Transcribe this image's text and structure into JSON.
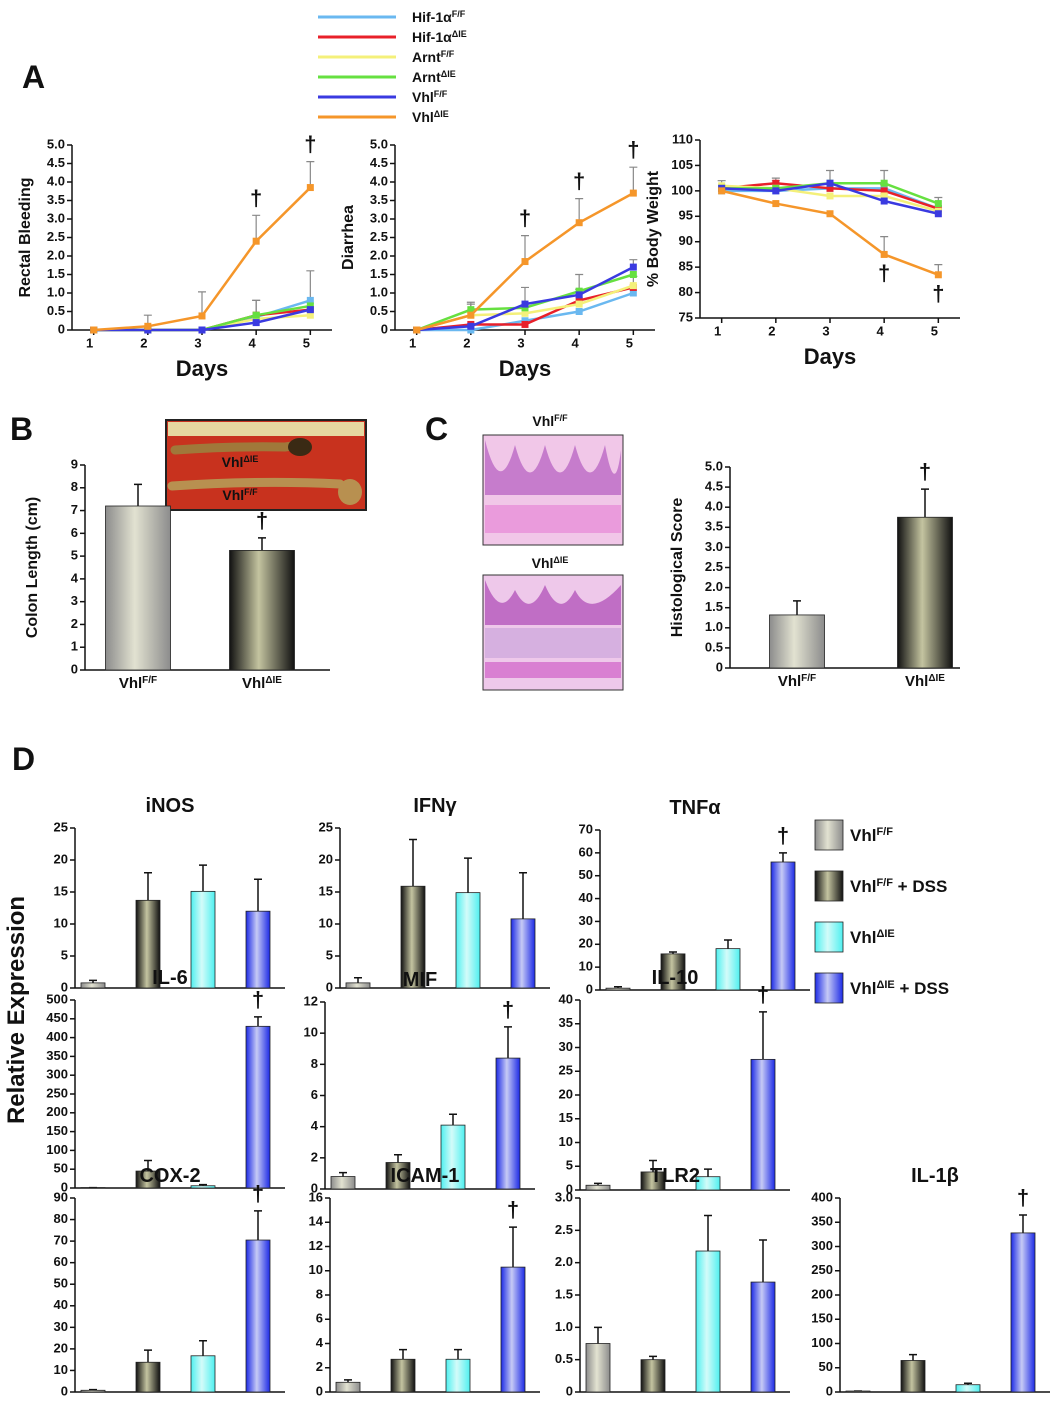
{
  "panel_labels": [
    "A",
    "B",
    "C",
    "D"
  ],
  "legend_A": [
    {
      "name": "Hif-1α",
      "sup": "F/F",
      "color": "#6ab8f0"
    },
    {
      "name": "Hif-1α",
      "sup": "ΔIE",
      "color": "#e8202a"
    },
    {
      "name": "Arnt",
      "sup": "F/F",
      "color": "#f4f07a"
    },
    {
      "name": "Arnt",
      "sup": "ΔIE",
      "color": "#66e040"
    },
    {
      "name": "Vhl",
      "sup": "F/F",
      "color": "#3a3ae0"
    },
    {
      "name": "Vhl",
      "sup": "ΔIE",
      "color": "#f5962a"
    }
  ],
  "legend_D": [
    {
      "name": "Vhl",
      "sup": "F/F",
      "color": "#8c8c8c"
    },
    {
      "name": "Vhl",
      "sup": "F/F",
      "suffix": " + DSS",
      "color": "#111111"
    },
    {
      "name": "Vhl",
      "sup": "ΔIE",
      "color": "#4ef0f0"
    },
    {
      "name": "Vhl",
      "sup": "ΔIE",
      "suffix": " + DSS",
      "color": "#1c2ae6"
    }
  ],
  "shared_y_label": "Relative Expression",
  "chart_data": [
    {
      "type": "line",
      "y_label": "Rectal Bleeding",
      "x_label": "Days",
      "x": [
        1,
        2,
        3,
        4,
        5
      ],
      "xlim": [
        0.6,
        5.4
      ],
      "xticks": [
        1,
        2,
        3,
        4,
        5
      ],
      "ylim": [
        0,
        5
      ],
      "yticks": [
        0,
        0.5,
        {
          "value": 1,
          "label": "1.0"
        },
        1.5,
        {
          "value": 2,
          "label": "2.0"
        },
        2.5,
        {
          "value": 3,
          "label": "3.0"
        },
        3.5,
        {
          "value": 4,
          "label": "4.0"
        },
        4.5,
        {
          "value": 5,
          "label": "5.0"
        }
      ],
      "series": [
        {
          "values": [
            0,
            0,
            0,
            0.35,
            0.8
          ],
          "errors": [
            null,
            null,
            null,
            0.45,
            0.8
          ]
        },
        {
          "values": [
            0,
            0,
            0,
            0.4,
            0.55
          ],
          "errors": [
            null,
            null,
            null,
            0.4,
            null
          ]
        },
        {
          "values": [
            0,
            0,
            0,
            0.3,
            0.4
          ],
          "errors": [
            null,
            null,
            null,
            null,
            null
          ]
        },
        {
          "values": [
            0,
            0,
            0,
            0.4,
            0.65
          ],
          "errors": [
            null,
            null,
            null,
            null,
            null
          ]
        },
        {
          "values": [
            0,
            0,
            0,
            0.2,
            0.55
          ],
          "errors": [
            null,
            null,
            null,
            null,
            null
          ]
        },
        {
          "values": [
            0,
            0.1,
            0.38,
            2.4,
            3.85
          ],
          "errors": [
            null,
            0.3,
            0.65,
            0.7,
            0.7
          ]
        }
      ],
      "annotations": [
        {
          "text": "†",
          "series": 5,
          "index": 3,
          "side": "above"
        },
        {
          "text": "†",
          "series": 5,
          "index": 4,
          "side": "above"
        }
      ]
    },
    {
      "type": "line",
      "y_label": "Diarrhea",
      "x_label": "Days",
      "x": [
        1,
        2,
        3,
        4,
        5
      ],
      "xlim": [
        0.6,
        5.4
      ],
      "xticks": [
        1,
        2,
        3,
        4,
        5
      ],
      "ylim": [
        0,
        5
      ],
      "yticks": [
        0,
        0.5,
        {
          "value": 1,
          "label": "1.0"
        },
        1.5,
        {
          "value": 2,
          "label": "2.0"
        },
        2.5,
        {
          "value": 3,
          "label": "3.0"
        },
        3.5,
        {
          "value": 4,
          "label": "4.0"
        },
        4.5,
        {
          "value": 5,
          "label": "5.0"
        }
      ],
      "series": [
        {
          "values": [
            0,
            0,
            0.25,
            0.5,
            1.0
          ],
          "errors": [
            null,
            null,
            null,
            null,
            null
          ]
        },
        {
          "values": [
            0,
            0.15,
            0.15,
            0.8,
            1.15
          ],
          "errors": [
            null,
            null,
            null,
            0.3,
            0.3
          ]
        },
        {
          "values": [
            0,
            0.4,
            0.45,
            0.7,
            1.2
          ],
          "errors": [
            null,
            null,
            null,
            null,
            null
          ]
        },
        {
          "values": [
            0,
            0.55,
            0.6,
            1.05,
            1.5
          ],
          "errors": [
            null,
            0.2,
            null,
            0.45,
            null
          ]
        },
        {
          "values": [
            0,
            0.1,
            0.7,
            0.95,
            1.7
          ],
          "errors": [
            null,
            null,
            0.45,
            null,
            0.2
          ]
        },
        {
          "values": [
            0,
            0.4,
            1.85,
            2.9,
            3.7
          ],
          "errors": [
            null,
            0.3,
            0.7,
            0.65,
            0.7
          ]
        }
      ],
      "annotations": [
        {
          "text": "†",
          "series": 5,
          "index": 2,
          "side": "above"
        },
        {
          "text": "†",
          "series": 5,
          "index": 3,
          "side": "above"
        },
        {
          "text": "†",
          "series": 5,
          "index": 4,
          "side": "above"
        }
      ]
    },
    {
      "type": "line",
      "y_label": "% Body Weight",
      "x_label": "Days",
      "x": [
        1,
        2,
        3,
        4,
        5
      ],
      "xlim": [
        0.6,
        5.4
      ],
      "xticks": [
        1,
        2,
        3,
        4,
        5
      ],
      "ylim": [
        75,
        110
      ],
      "yticks": [
        75,
        80,
        85,
        90,
        95,
        100,
        105,
        110
      ],
      "series": [
        {
          "values": [
            100,
            100,
            100.5,
            100.5,
            96.5
          ],
          "errors": [
            null,
            null,
            null,
            null,
            null
          ]
        },
        {
          "values": [
            100.5,
            101.5,
            100.5,
            100,
            96.5
          ],
          "errors": [
            null,
            1,
            null,
            1.2,
            null
          ]
        },
        {
          "values": [
            101,
            100.5,
            99,
            99,
            96
          ],
          "errors": [
            null,
            null,
            null,
            null,
            null
          ]
        },
        {
          "values": [
            100.5,
            100.5,
            101.5,
            101.5,
            97.5
          ],
          "errors": [
            1.5,
            1.5,
            2.5,
            2.5,
            1.2
          ]
        },
        {
          "values": [
            100.5,
            100,
            101.5,
            98,
            95.5
          ],
          "errors": [
            null,
            null,
            null,
            null,
            null
          ]
        },
        {
          "values": [
            100,
            97.5,
            95.5,
            87.5,
            83.5
          ],
          "errors": [
            null,
            null,
            null,
            3.5,
            2
          ]
        }
      ],
      "annotations": [
        {
          "text": "†",
          "series": 5,
          "index": 3,
          "side": "below"
        },
        {
          "text": "†",
          "series": 5,
          "index": 4,
          "side": "below"
        }
      ]
    },
    {
      "type": "bar",
      "y_label": "Colon Length (cm)",
      "categories": [
        {
          "name": "Vhl",
          "sup": "F/F"
        },
        {
          "name": "Vhl",
          "sup": "ΔIE"
        }
      ],
      "values": [
        7.2,
        5.25
      ],
      "errors": [
        0.95,
        0.55
      ],
      "colors": [
        "#8c8c8c",
        "#111111"
      ],
      "ylim": [
        0,
        9
      ],
      "yticks": [
        0,
        1,
        2,
        3,
        4,
        5,
        6,
        7,
        8,
        9
      ],
      "annotations": [
        {
          "text": "†",
          "bar": 1
        }
      ],
      "inset_labels": [
        {
          "name": "Vhl",
          "sup": "ΔIE"
        },
        {
          "name": "Vhl",
          "sup": "F/F"
        }
      ]
    },
    {
      "type": "bar",
      "y_label": "Histological Score",
      "categories": [
        {
          "name": "Vhl",
          "sup": "F/F"
        },
        {
          "name": "Vhl",
          "sup": "ΔIE"
        }
      ],
      "values": [
        1.32,
        3.75
      ],
      "errors": [
        0.35,
        0.7
      ],
      "colors": [
        "#8c8c8c",
        "#111111"
      ],
      "ylim": [
        0,
        5
      ],
      "yticks": [
        0,
        0.5,
        {
          "value": 1,
          "label": "1.0"
        },
        1.5,
        {
          "value": 2,
          "label": "2.0"
        },
        2.5,
        {
          "value": 3,
          "label": "3.0"
        },
        3.5,
        {
          "value": 4,
          "label": "4.0"
        },
        4.5,
        {
          "value": 5,
          "label": "5.0"
        }
      ],
      "annotations": [
        {
          "text": "†",
          "bar": 1
        }
      ],
      "image_titles": [
        {
          "name": "Vhl",
          "sup": "F/F"
        },
        {
          "name": "Vhl",
          "sup": "ΔIE"
        }
      ]
    },
    {
      "type": "bar",
      "title": "iNOS",
      "values": [
        0.8,
        13.7,
        15.1,
        12.0
      ],
      "errors": [
        0.4,
        4.3,
        4.1,
        5.0
      ],
      "ylim": [
        0,
        25
      ],
      "yticks": [
        0,
        5,
        10,
        15,
        20,
        25
      ],
      "annotations": []
    },
    {
      "type": "bar",
      "title": "IFNγ",
      "values": [
        0.8,
        15.9,
        14.9,
        10.8
      ],
      "errors": [
        0.8,
        7.3,
        5.4,
        7.2
      ],
      "ylim": [
        0,
        25
      ],
      "yticks": [
        0,
        5,
        10,
        15,
        20,
        25
      ],
      "annotations": []
    },
    {
      "type": "bar",
      "title": "TNFα",
      "values": [
        0.8,
        15.8,
        18.1,
        56
      ],
      "errors": [
        0.6,
        0.8,
        3.8,
        4.0
      ],
      "ylim": [
        0,
        70
      ],
      "yticks": [
        0,
        10,
        20,
        30,
        40,
        50,
        60,
        70
      ],
      "annotations": [
        {
          "text": "†",
          "bar": 3
        }
      ]
    },
    {
      "type": "bar",
      "title": "IL-6",
      "values": [
        1,
        45,
        6,
        430
      ],
      "errors": [
        0,
        28,
        3,
        25
      ],
      "ylim": [
        0,
        500
      ],
      "yticks": [
        0,
        50,
        100,
        150,
        200,
        250,
        300,
        350,
        400,
        450,
        500
      ],
      "annotations": [
        {
          "text": "†",
          "bar": 3
        }
      ]
    },
    {
      "type": "bar",
      "title": "MIF",
      "values": [
        0.8,
        1.7,
        4.1,
        8.4
      ],
      "errors": [
        0.25,
        0.5,
        0.7,
        2.0
      ],
      "ylim": [
        0,
        12
      ],
      "yticks": [
        0,
        2,
        4,
        6,
        8,
        10,
        12
      ],
      "annotations": [
        {
          "text": "†",
          "bar": 3
        }
      ]
    },
    {
      "type": "bar",
      "title": "IL-10",
      "values": [
        1.0,
        3.8,
        2.8,
        27.5
      ],
      "errors": [
        0.4,
        2.4,
        1.6,
        10
      ],
      "ylim": [
        0,
        40
      ],
      "yticks": [
        0,
        5,
        10,
        15,
        20,
        25,
        30,
        35,
        40
      ],
      "annotations": [
        {
          "text": "†",
          "bar": 3
        }
      ]
    },
    {
      "type": "bar",
      "title": "COX-2",
      "values": [
        0.8,
        13.8,
        16.8,
        70.5
      ],
      "errors": [
        0.3,
        5.6,
        7.0,
        13.5
      ],
      "ylim": [
        0,
        90
      ],
      "yticks": [
        0,
        10,
        20,
        30,
        40,
        50,
        60,
        70,
        80,
        90
      ],
      "annotations": [
        {
          "text": "†",
          "bar": 3
        }
      ]
    },
    {
      "type": "bar",
      "title": "ICAM-1",
      "values": [
        0.8,
        2.7,
        2.7,
        10.3
      ],
      "errors": [
        0.2,
        0.8,
        0.8,
        3.3
      ],
      "ylim": [
        0,
        16
      ],
      "yticks": [
        0,
        2,
        4,
        6,
        8,
        10,
        12,
        14,
        16
      ],
      "annotations": [
        {
          "text": "†",
          "bar": 3
        }
      ]
    },
    {
      "type": "bar",
      "title": "TLR2",
      "values": [
        0.75,
        0.5,
        2.18,
        1.7
      ],
      "errors": [
        0.25,
        0.05,
        0.55,
        0.65
      ],
      "ylim": [
        0,
        3
      ],
      "yticks": [
        0,
        0.5,
        {
          "value": 1,
          "label": "1.0"
        },
        1.5,
        {
          "value": 2,
          "label": "2.0"
        },
        2.5,
        {
          "value": 3,
          "label": "3.0"
        }
      ],
      "annotations": []
    },
    {
      "type": "bar",
      "title": "IL-1β",
      "values": [
        2,
        65,
        15,
        328
      ],
      "errors": [
        0,
        12,
        3,
        37
      ],
      "ylim": [
        0,
        400
      ],
      "yticks": [
        0,
        50,
        100,
        150,
        200,
        250,
        300,
        350,
        400
      ],
      "annotations": [
        {
          "text": "†",
          "bar": 3
        }
      ]
    }
  ]
}
